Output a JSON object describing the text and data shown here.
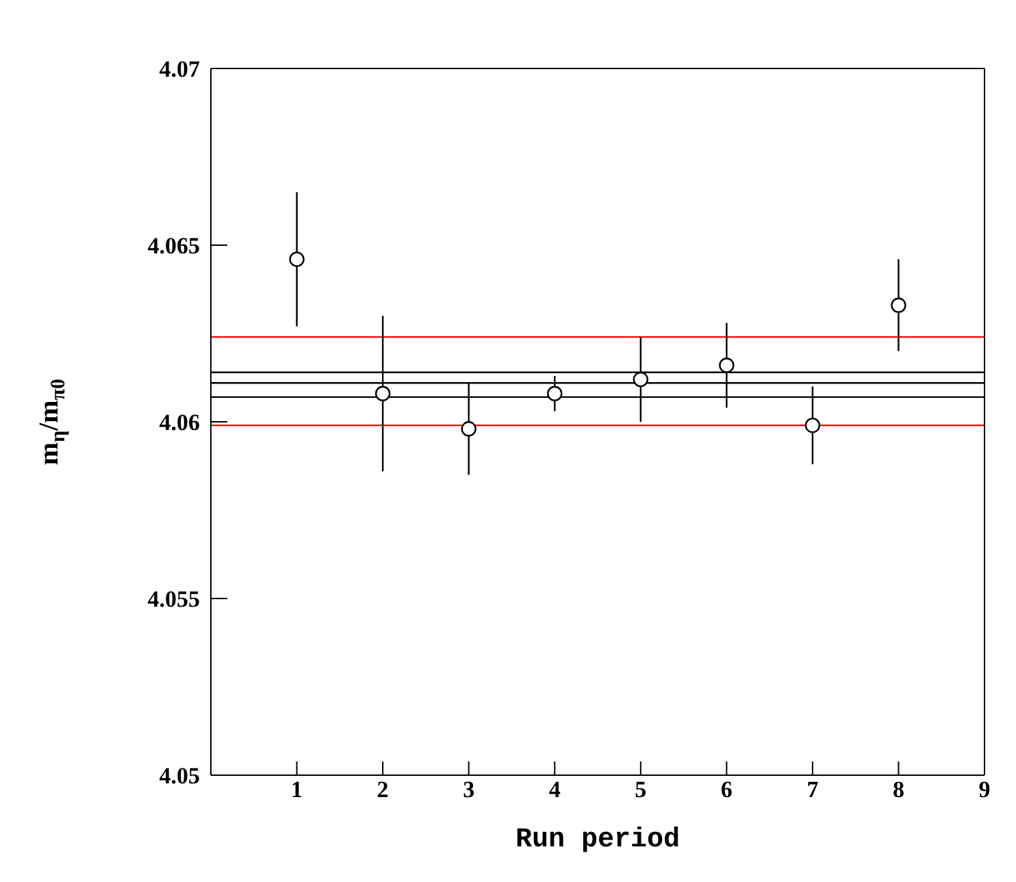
{
  "chart_data": {
    "type": "scatter",
    "xlabel": "Run period",
    "ylabel": "m$_{η}$/m$_{π0}$",
    "x": [
      1,
      2,
      3,
      4,
      5,
      6,
      7,
      8
    ],
    "series": [
      {
        "color": "#000000",
        "values": [
          4.0646,
          4.0608,
          4.0598,
          4.0608,
          4.0612,
          4.0616,
          4.0599,
          4.0633
        ],
        "errors": [
          0.0019,
          0.0022,
          0.0013,
          0.0005,
          0.0012,
          0.0012,
          0.0011,
          0.0013
        ]
      }
    ],
    "marker": "circle",
    "xlim": [
      0,
      9
    ],
    "xticks": [
      1,
      2,
      3,
      4,
      5,
      6,
      7,
      8,
      9
    ],
    "ylim": [
      4.05,
      4.07
    ],
    "yticks": [
      4.05,
      4.055,
      4.06,
      4.065,
      4.07
    ],
    "ref_lines": [
      {
        "axis": "y",
        "value": 4.0611,
        "color": "#000000"
      },
      {
        "axis": "y",
        "value": 4.0614,
        "color": "#000000"
      },
      {
        "axis": "y",
        "value": 4.0607,
        "color": "#000000"
      },
      {
        "axis": "y",
        "value": 4.0624,
        "color": "#ff0000"
      },
      {
        "axis": "y",
        "value": 4.0599,
        "color": "#ff0000"
      }
    ]
  }
}
